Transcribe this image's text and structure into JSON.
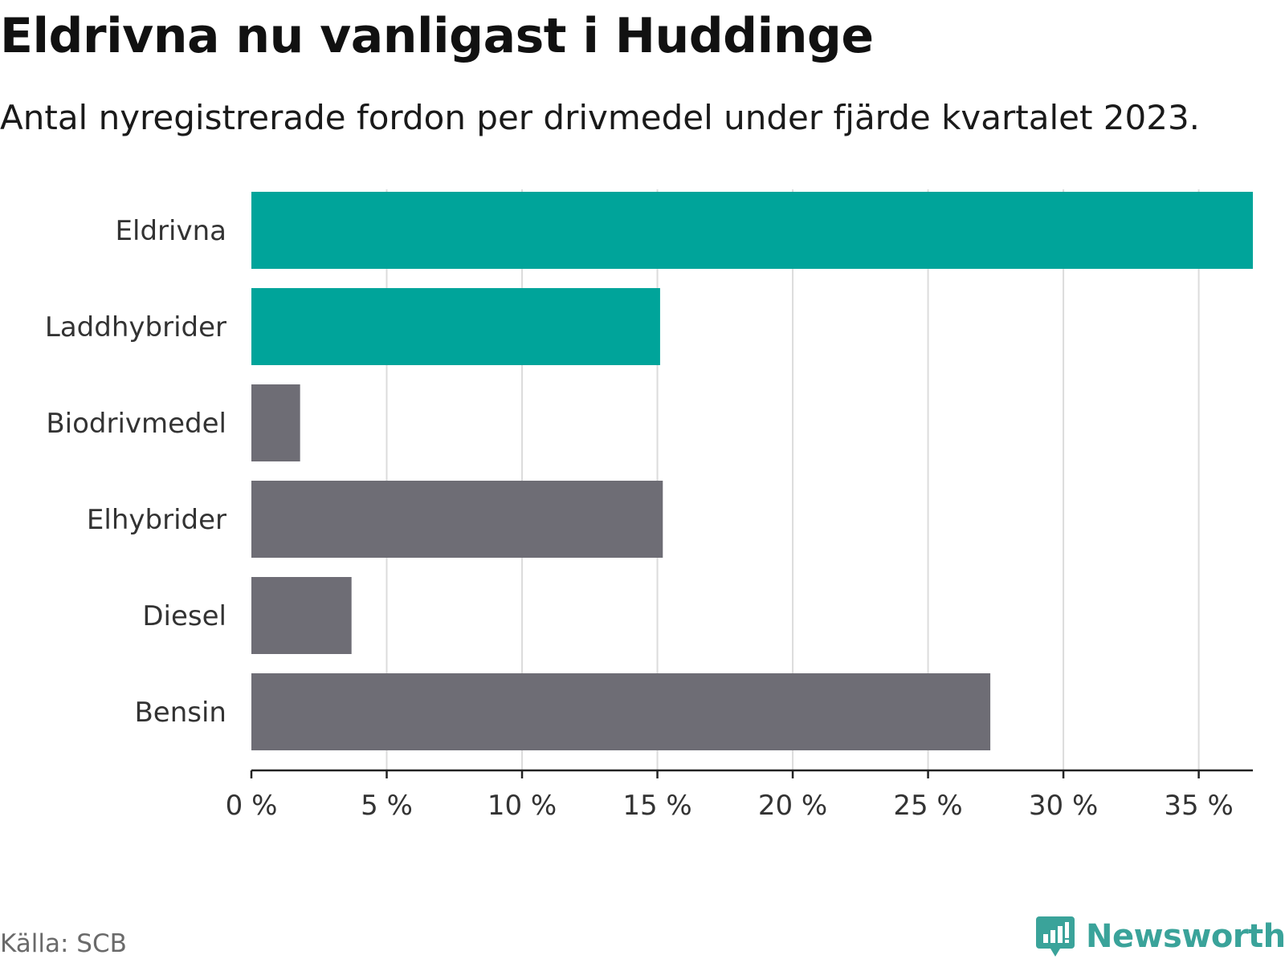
{
  "title": "Eldrivna nu vanligast i Huddinge",
  "subtitle": "Antal nyregistrerade fordon per drivmedel under fjärde kvartalet 2023.",
  "source": "Källa: SCB",
  "brand": {
    "name": "Newsworthy",
    "icon": "newsworthy-logo-icon",
    "color": "#3aa39a"
  },
  "colors": {
    "highlight": "#00a49a",
    "default": "#6e6d75",
    "grid": "#dcdcdc",
    "axis": "#222222",
    "label": "#333333"
  },
  "chart_data": {
    "type": "bar",
    "orientation": "horizontal",
    "title": "Eldrivna nu vanligast i Huddinge",
    "subtitle": "Antal nyregistrerade fordon per drivmedel under fjärde kvartalet 2023.",
    "xlabel": "",
    "ylabel": "",
    "categories": [
      "Eldrivna",
      "Laddhybrider",
      "Biodrivmedel",
      "Elhybrider",
      "Diesel",
      "Bensin"
    ],
    "values": [
      37.0,
      15.1,
      1.8,
      15.2,
      3.7,
      27.3
    ],
    "highlighted": [
      true,
      true,
      false,
      false,
      false,
      false
    ],
    "unit": "%",
    "xlim": [
      0,
      37.0
    ],
    "xticks": [
      0,
      5,
      10,
      15,
      20,
      25,
      30,
      35
    ],
    "xtick_labels": [
      "0 %",
      "5 %",
      "10 %",
      "15 %",
      "20 %",
      "25 %",
      "30 %",
      "35 %"
    ],
    "grid": "vertical",
    "legend": "none"
  }
}
